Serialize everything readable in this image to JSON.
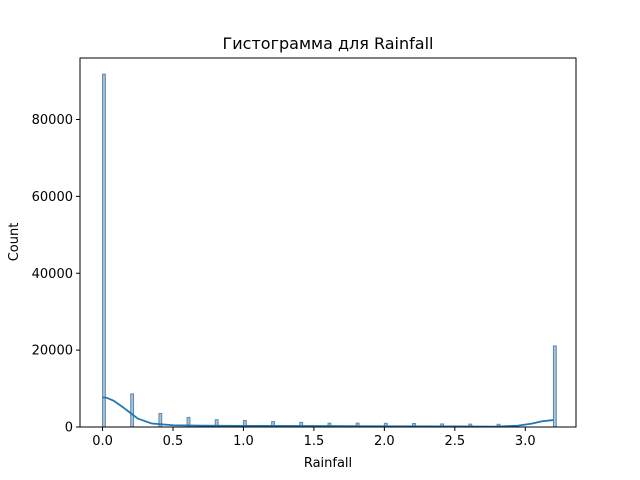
{
  "chart_data": {
    "type": "bar",
    "title": "Гистограмма для Rainfall",
    "xlabel": "Rainfall",
    "ylabel": "Count",
    "xlim": [
      -0.16,
      3.36
    ],
    "ylim": [
      0,
      96000
    ],
    "x_ticks": [
      0.0,
      0.5,
      1.0,
      1.5,
      2.0,
      2.5,
      3.0
    ],
    "x_tick_labels": [
      "0.0",
      "0.5",
      "1.0",
      "1.5",
      "2.0",
      "2.5",
      "3.0"
    ],
    "y_ticks": [
      0,
      20000,
      40000,
      60000,
      80000
    ],
    "y_tick_labels": [
      "0",
      "20000",
      "40000",
      "60000",
      "80000"
    ],
    "grid": false,
    "legend": "none",
    "bin_width": 0.02,
    "colors": {
      "bar_fill": "#a8c3da",
      "bar_edge": "#5d88ad",
      "kde_line": "#1f77b4"
    },
    "series": [
      {
        "type": "histogram",
        "x": [
          0.0,
          0.2,
          0.4,
          0.6,
          0.8,
          1.0,
          1.2,
          1.4,
          1.6,
          1.8,
          2.0,
          2.2,
          2.4,
          2.6,
          2.8,
          3.2
        ],
        "values": [
          91800,
          8600,
          3500,
          2500,
          1900,
          1700,
          1400,
          1200,
          1000,
          1000,
          950,
          900,
          800,
          750,
          700,
          21100
        ]
      },
      {
        "type": "line",
        "x": [
          0.0,
          0.03,
          0.08,
          0.15,
          0.25,
          0.35,
          0.5,
          0.7,
          1.0,
          1.5,
          2.0,
          2.5,
          2.8,
          2.95,
          3.05,
          3.12,
          3.2
        ],
        "values": [
          7700,
          7600,
          6800,
          5000,
          2200,
          900,
          450,
          350,
          300,
          250,
          200,
          150,
          100,
          350,
          900,
          1500,
          1800
        ]
      }
    ]
  }
}
